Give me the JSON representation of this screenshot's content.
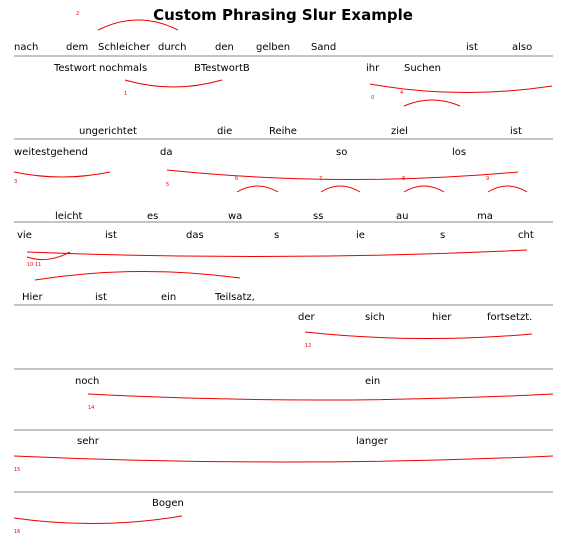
{
  "title": "Custom Phrasing Slur Example",
  "systems": [
    {
      "above": [
        "nach",
        "dem",
        "Schleicher",
        "durch",
        "den",
        "gelben",
        "Sand",
        "ist",
        "also"
      ],
      "below": [
        "Testwort",
        "nochmals",
        "BTestwortB",
        "ihr",
        "Suchen"
      ],
      "labels": [
        "2",
        "1",
        "0",
        "4"
      ]
    },
    {
      "above": [
        "ungerichtet",
        "die",
        "Reihe",
        "ziel",
        "ist"
      ],
      "below": [
        "weitestgehend",
        "da",
        "so",
        "los"
      ],
      "labels": [
        "3",
        "5",
        "6",
        "7",
        "8",
        "9"
      ]
    },
    {
      "above": [
        "leicht",
        "es",
        "wa",
        "ss",
        "au",
        "ma"
      ],
      "below": [
        "vie",
        "ist",
        "das",
        "s",
        "ie",
        "s",
        "cht"
      ],
      "labels": [
        "10",
        "11"
      ]
    },
    {
      "above": [
        "Hier",
        "ist",
        "ein",
        "Teilsatz,"
      ],
      "below": [
        "der",
        "sich",
        "hier",
        "fortsetzt."
      ],
      "labels": [
        "12"
      ]
    },
    {
      "above": [],
      "below": [
        "noch",
        "ein"
      ],
      "labels": [
        "14"
      ]
    },
    {
      "above": [],
      "below": [
        "sehr",
        "langer"
      ],
      "labels": [
        "15"
      ]
    },
    {
      "above": [],
      "below": [
        "Bogen"
      ],
      "labels": [
        "16"
      ]
    }
  ]
}
